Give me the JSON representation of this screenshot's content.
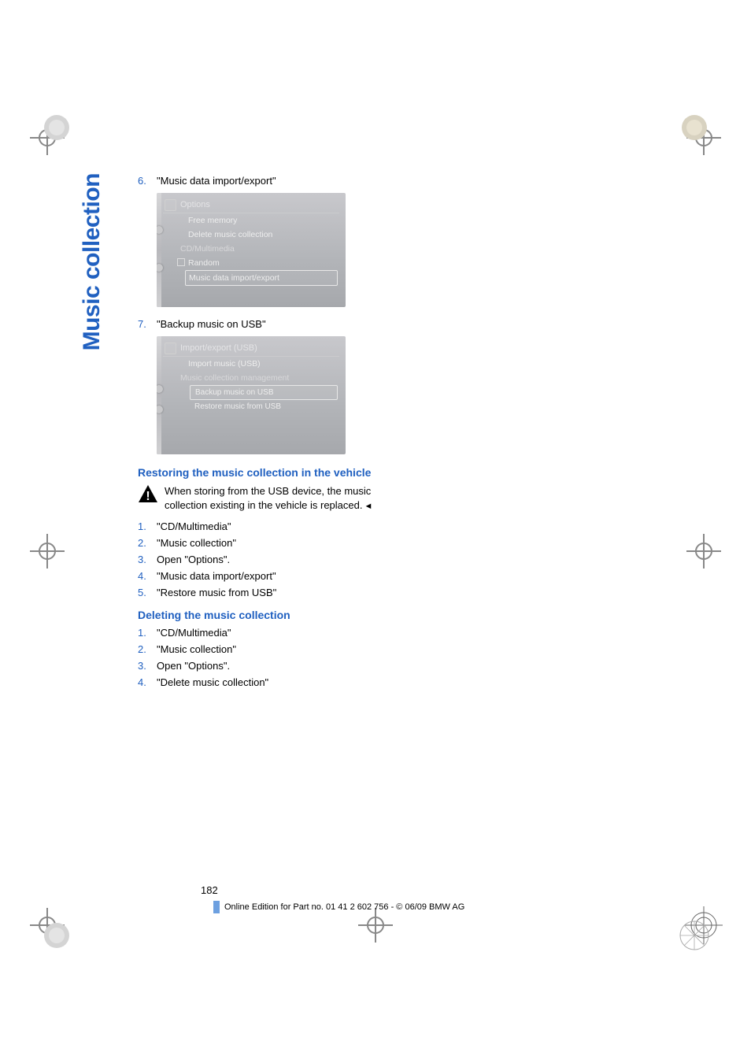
{
  "sidebar_title": "Music collection",
  "step6": {
    "num": "6.",
    "text": "\"Music data import/export\""
  },
  "screenshot1": {
    "header": "Options",
    "items": [
      {
        "text": "Free memory",
        "type": "plain"
      },
      {
        "text": "Delete music collection",
        "type": "plain"
      },
      {
        "text": "CD/Multimedia",
        "type": "group"
      },
      {
        "text": "Random",
        "type": "checkbox"
      },
      {
        "text": "Music data import/export",
        "type": "selected"
      }
    ]
  },
  "step7": {
    "num": "7.",
    "text": "\"Backup music on USB\""
  },
  "screenshot2": {
    "header": "Import/export (USB)",
    "items": [
      {
        "text": "Import music (USB)",
        "type": "plain"
      },
      {
        "text": "Music collection management",
        "type": "group-plain"
      },
      {
        "text": "Backup music on USB",
        "type": "sub-selected"
      },
      {
        "text": "Restore music from USB",
        "type": "sub"
      }
    ]
  },
  "section_restore": {
    "heading": "Restoring the music collection in the vehicle",
    "warning": "When storing from the USB device, the music collection existing in the vehicle is replaced.",
    "steps": [
      {
        "num": "1.",
        "text": "\"CD/Multimedia\""
      },
      {
        "num": "2.",
        "text": "\"Music collection\""
      },
      {
        "num": "3.",
        "text": "Open \"Options\"."
      },
      {
        "num": "4.",
        "text": "\"Music data import/export\""
      },
      {
        "num": "5.",
        "text": "\"Restore music from USB\""
      }
    ]
  },
  "section_delete": {
    "heading": "Deleting the music collection",
    "steps": [
      {
        "num": "1.",
        "text": "\"CD/Multimedia\""
      },
      {
        "num": "2.",
        "text": "\"Music collection\""
      },
      {
        "num": "3.",
        "text": "Open \"Options\"."
      },
      {
        "num": "4.",
        "text": "\"Delete music collection\""
      }
    ]
  },
  "footer": {
    "page": "182",
    "text": "Online Edition for Part no. 01 41 2 602 756 - © 06/09 BMW AG"
  },
  "colors": {
    "link_blue": "#2060c0",
    "screenshot_bg": "#b6b8bc",
    "bar_blue": "#6da0e0"
  }
}
